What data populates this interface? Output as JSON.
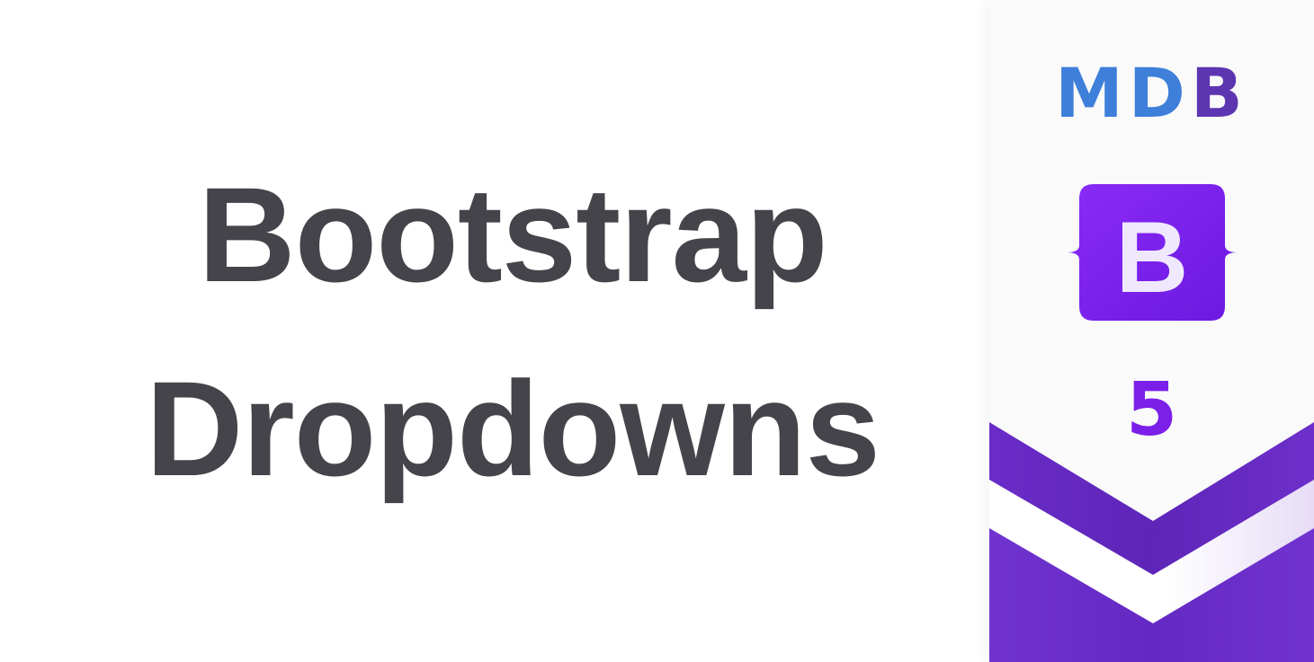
{
  "title": {
    "line1": "Bootstrap",
    "line2": "Dropdowns"
  },
  "branding": {
    "mdb_logo_text": "MD",
    "mdb_logo_b": "B",
    "bootstrap_logo_letter": "B",
    "version": "5"
  },
  "icons": {
    "bootstrap": "bootstrap-icon",
    "decoration": "chevron-decoration"
  },
  "colors": {
    "title": "#45444a",
    "mdb_blue": "#3d7fd9",
    "mdb_purple": "#5e35b1",
    "bootstrap_purple": "#7b1fe9",
    "chevron_purple": "#6d2fc9",
    "background": "#ffffff"
  }
}
